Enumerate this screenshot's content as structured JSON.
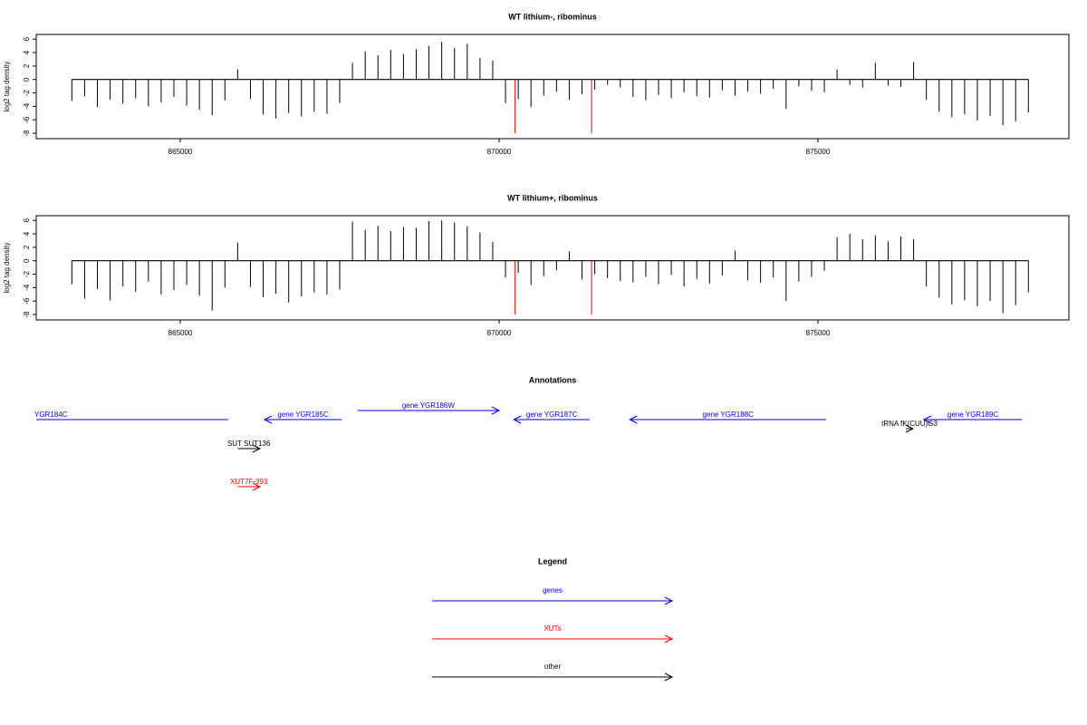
{
  "chart_data": [
    {
      "type": "bar",
      "title": "WT lithium-, ribominus",
      "ylabel": "log2 tag density",
      "xlim": [
        862741,
        878935
      ],
      "ylim": [
        -8.8,
        6.7
      ],
      "xticks": [
        865000,
        870000,
        875000
      ],
      "yticks": [
        -8,
        -6,
        -4,
        -2,
        0,
        2,
        4,
        6
      ],
      "series": [
        {
          "color": "#000000",
          "x": [
            863300,
            863500,
            863700,
            863900,
            864100,
            864300,
            864500,
            864700,
            864900,
            865100,
            865300,
            865500,
            865700,
            865900,
            866100,
            866300,
            866500,
            866700,
            866900,
            867100,
            867300,
            867500,
            867700,
            867900,
            868100,
            868300,
            868500,
            868700,
            868900,
            869100,
            869300,
            869500,
            869700,
            869900,
            870100,
            870300,
            870500,
            870700,
            870900,
            871100,
            871300,
            871500,
            871700,
            871900,
            872100,
            872300,
            872500,
            872700,
            872900,
            873100,
            873300,
            873500,
            873700,
            873900,
            874100,
            874300,
            874500,
            874700,
            874900,
            875100,
            875300,
            875500,
            875700,
            875900,
            876100,
            876300,
            876500,
            876700,
            876900,
            877100,
            877300,
            877500,
            877700,
            877900,
            878100,
            878300
          ],
          "values": [
            -3.2,
            -2.5,
            -4.1,
            -3.0,
            -3.6,
            -2.8,
            -4.0,
            -3.4,
            -2.6,
            -3.9,
            -4.5,
            -5.3,
            -3.1,
            1.5,
            -2.9,
            -5.2,
            -5.8,
            -5.0,
            -5.5,
            -4.8,
            -5.1,
            -3.5,
            2.5,
            4.2,
            3.6,
            4.4,
            3.8,
            4.5,
            5.0,
            5.6,
            4.7,
            5.3,
            3.2,
            2.8,
            -3.5,
            -2.9,
            -4.1,
            -2.4,
            -1.8,
            -3.0,
            -2.2,
            -1.5,
            -0.8,
            -1.2,
            -2.6,
            -3.1,
            -2.3,
            -2.8,
            -1.9,
            -2.5,
            -2.7,
            -1.6,
            -2.4,
            -1.8,
            -2.1,
            -1.4,
            -4.4,
            -1.0,
            -1.7,
            -1.9,
            1.5,
            -0.8,
            -1.2,
            2.5,
            -0.9,
            -1.1,
            2.6,
            -3.0,
            -4.8,
            -5.6,
            -5.2,
            -6.1,
            -5.4,
            -6.8,
            -6.2,
            -4.9
          ]
        },
        {
          "color": "#ff0000",
          "x": [
            870250,
            871450
          ],
          "values": [
            -8,
            -8
          ]
        }
      ]
    },
    {
      "type": "bar",
      "title": "WT lithium+, ribominus",
      "ylabel": "log2 tag density",
      "xlim": [
        862741,
        878935
      ],
      "ylim": [
        -8.8,
        6.7
      ],
      "xticks": [
        865000,
        870000,
        875000
      ],
      "yticks": [
        -8,
        -6,
        -4,
        -2,
        0,
        2,
        4,
        6
      ],
      "series": [
        {
          "color": "#000000",
          "x": [
            863300,
            863500,
            863700,
            863900,
            864100,
            864300,
            864500,
            864700,
            864900,
            865100,
            865300,
            865500,
            865700,
            865900,
            866100,
            866300,
            866500,
            866700,
            866900,
            867100,
            867300,
            867500,
            867700,
            867900,
            868100,
            868300,
            868500,
            868700,
            868900,
            869100,
            869300,
            869500,
            869700,
            869900,
            870100,
            870300,
            870500,
            870700,
            870900,
            871100,
            871300,
            871500,
            871700,
            871900,
            872100,
            872300,
            872500,
            872700,
            872900,
            873100,
            873300,
            873500,
            873700,
            873900,
            874100,
            874300,
            874500,
            874700,
            874900,
            875100,
            875300,
            875500,
            875700,
            875900,
            876100,
            876300,
            876500,
            876700,
            876900,
            877100,
            877300,
            877500,
            877700,
            877900,
            878100,
            878300
          ],
          "values": [
            -3.5,
            -5.6,
            -4.2,
            -5.9,
            -3.8,
            -4.6,
            -3.1,
            -5.0,
            -4.4,
            -3.6,
            -5.2,
            -7.4,
            -4.0,
            2.7,
            -3.9,
            -5.4,
            -4.9,
            -6.2,
            -5.3,
            -4.7,
            -5.0,
            -4.3,
            5.8,
            4.6,
            5.2,
            4.4,
            5.0,
            4.9,
            5.9,
            6.0,
            5.7,
            5.1,
            4.2,
            2.8,
            -2.5,
            -1.8,
            -3.6,
            -2.3,
            -1.4,
            1.4,
            -2.8,
            -2.0,
            -2.6,
            -3.0,
            -3.2,
            -2.4,
            -3.5,
            -2.1,
            -3.8,
            -2.7,
            -3.4,
            -2.2,
            1.5,
            -2.9,
            -3.3,
            -2.5,
            -6.0,
            -3.1,
            -2.4,
            -1.5,
            3.5,
            4.0,
            3.2,
            3.8,
            2.9,
            3.6,
            3.2,
            -3.8,
            -5.5,
            -6.5,
            -5.9,
            -6.8,
            -6.0,
            -7.8,
            -6.6,
            -4.7
          ]
        },
        {
          "color": "#ff0000",
          "x": [
            870250,
            871450
          ],
          "values": [
            -8,
            -8
          ]
        }
      ]
    }
  ],
  "annotations": {
    "title": "Annotations",
    "features": [
      {
        "label": "YGR184C",
        "color": "#0000ff",
        "start": 865750,
        "end": 862000
      },
      {
        "label": "gene YGR185C",
        "color": "#0000ff",
        "start": 867530,
        "end": 866320
      },
      {
        "label": "gene YGR186W",
        "color": "#0000ff",
        "start": 867780,
        "end": 870000
      },
      {
        "label": "gene YGR187C",
        "color": "#0000ff",
        "start": 871420,
        "end": 870230
      },
      {
        "label": "gene YGR188C",
        "color": "#0000ff",
        "start": 875130,
        "end": 872050
      },
      {
        "label": "gene YGR189C",
        "color": "#0000ff",
        "start": 878200,
        "end": 876660
      },
      {
        "label": "tRNA fK(CUU)G3",
        "color": "#000000",
        "start": 876380,
        "end": 876490
      },
      {
        "label": "SUT SUT136",
        "color": "#000000",
        "start": 865900,
        "end": 866250
      },
      {
        "label": "XUT7F-393",
        "color": "#ff0000",
        "start": 865900,
        "end": 866250
      }
    ]
  },
  "legend": {
    "title": "Legend",
    "items": [
      {
        "label": "genes",
        "color": "#0000ff"
      },
      {
        "label": "XUTs",
        "color": "#ff0000"
      },
      {
        "label": "other",
        "color": "#000000"
      }
    ]
  }
}
